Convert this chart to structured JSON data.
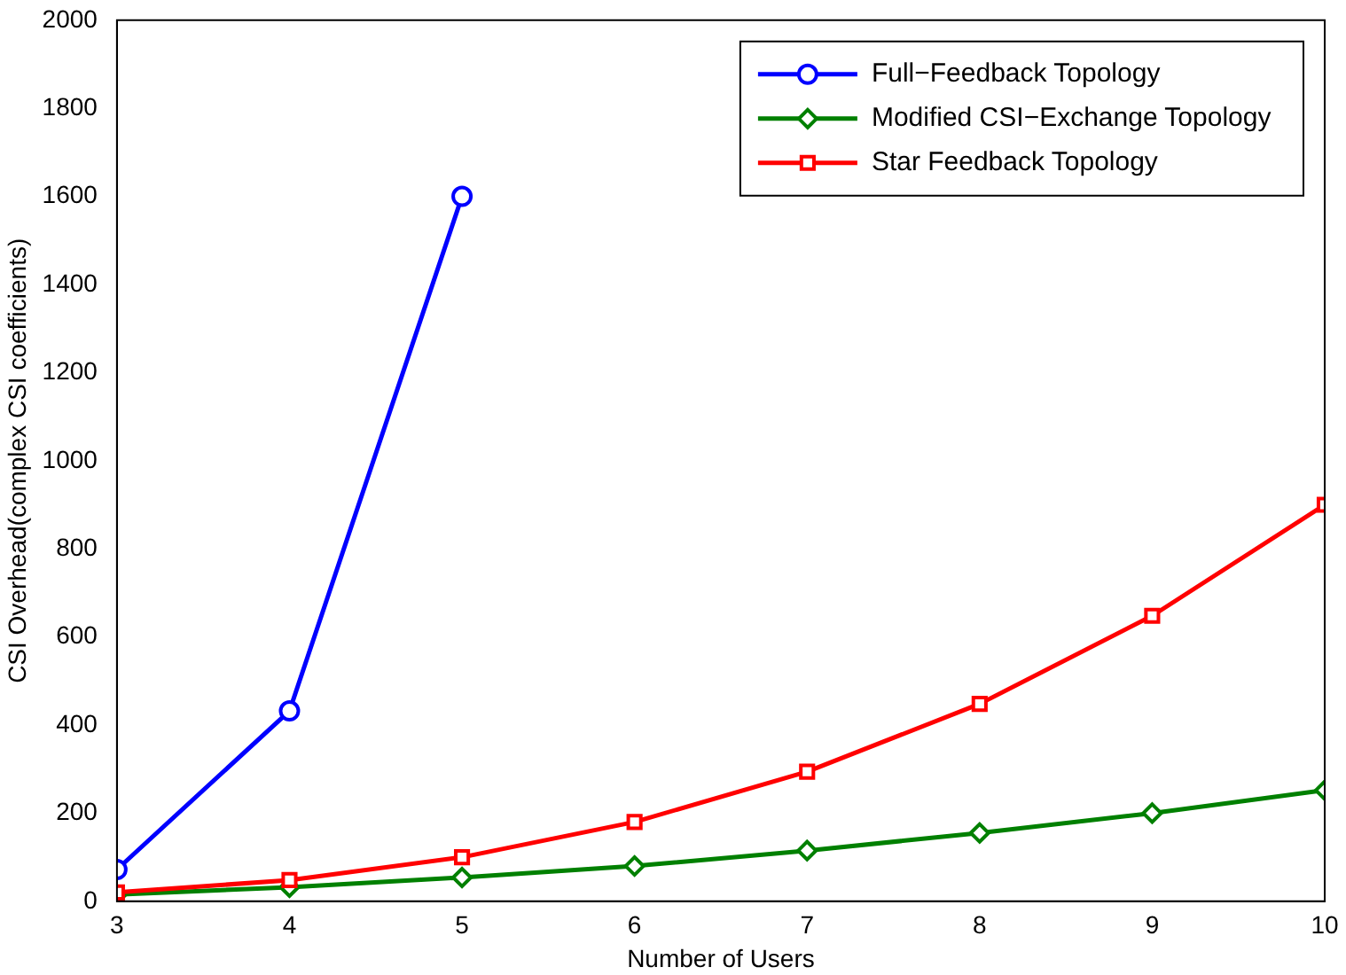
{
  "chart_data": {
    "type": "line",
    "xlabel": "Number of Users",
    "ylabel": "CSI Overhead(complex CSI coefficients)",
    "x": [
      3,
      4,
      5,
      6,
      7,
      8,
      9,
      10
    ],
    "series": [
      {
        "name": "Full−Feedback Topology",
        "color": "#0000ff",
        "marker": "circle",
        "values": [
          72,
          432,
          1600,
          null,
          null,
          null,
          null,
          null
        ]
      },
      {
        "name": "Modified CSI−Exchange Topology",
        "color": "#008000",
        "marker": "diamond",
        "values": [
          15,
          32,
          54,
          80,
          115,
          155,
          200,
          252
        ]
      },
      {
        "name": "Star Feedback Topology",
        "color": "#ff0000",
        "marker": "square",
        "values": [
          20,
          48,
          100,
          180,
          294,
          448,
          648,
          900
        ]
      }
    ],
    "xlim": [
      3,
      10
    ],
    "xticks": [
      3,
      4,
      5,
      6,
      7,
      8,
      9,
      10
    ],
    "ylim": [
      0,
      2000
    ],
    "yticks": [
      0,
      200,
      400,
      600,
      800,
      1000,
      1200,
      1400,
      1600,
      1800,
      2000
    ],
    "grid": false,
    "legend": "top right",
    "line_style": "solid"
  }
}
